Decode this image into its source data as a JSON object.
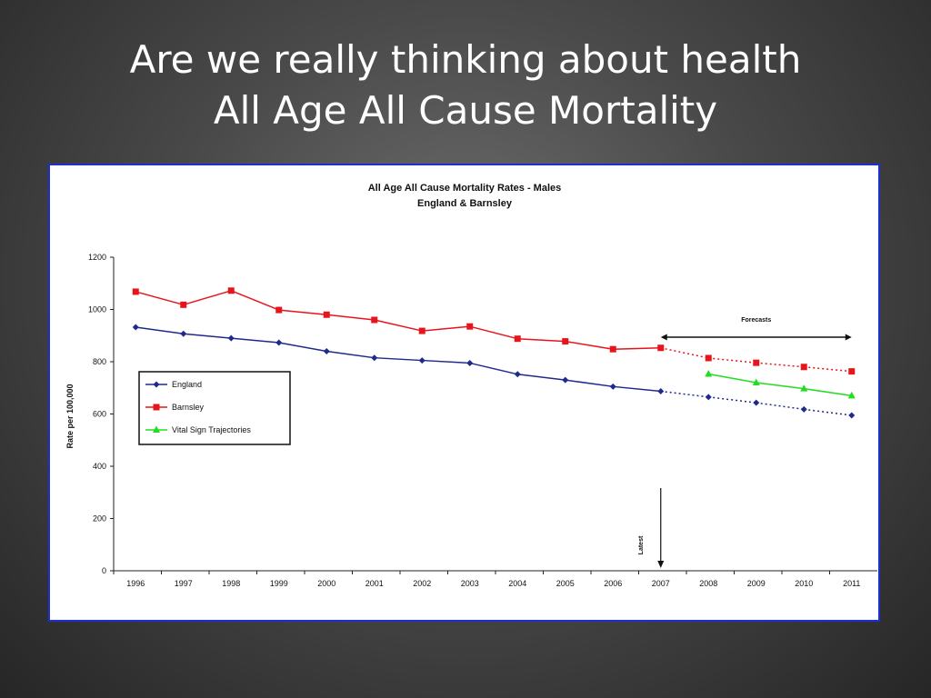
{
  "slide": {
    "title_line1": "Are we really thinking about health",
    "title_line2": "All Age All Cause Mortality"
  },
  "chart_data": {
    "type": "line",
    "title": "All Age All Cause Mortality Rates - Males",
    "subtitle": "England & Barnsley",
    "xlabel": "",
    "ylabel": "Rate per 100,000",
    "categories": [
      "1996",
      "1997",
      "1998",
      "1999",
      "2000",
      "2001",
      "2002",
      "2003",
      "2004",
      "2005",
      "2006",
      "2007",
      "2008",
      "2009",
      "2010",
      "2011"
    ],
    "ylim": [
      0,
      1200
    ],
    "yticks": [
      0,
      200,
      400,
      600,
      800,
      1000,
      1200
    ],
    "grid": false,
    "legend_position": "left",
    "series": [
      {
        "name": "England",
        "color": "#1f2a8c",
        "marker": "diamond",
        "values": [
          932,
          907,
          890,
          873,
          840,
          815,
          805,
          795,
          752,
          730,
          705,
          687,
          665,
          643,
          618,
          595
        ],
        "forecast_from_index": 11
      },
      {
        "name": "Barnsley",
        "color": "#e8141b",
        "marker": "square",
        "values": [
          1068,
          1018,
          1072,
          998,
          980,
          960,
          918,
          935,
          888,
          878,
          848,
          853,
          814,
          796,
          780,
          763
        ],
        "forecast_from_index": 11
      },
      {
        "name": "Vital Sign Trajectories",
        "color": "#22dd22",
        "marker": "triangle",
        "values": [
          null,
          null,
          null,
          null,
          null,
          null,
          null,
          null,
          null,
          null,
          null,
          null,
          753,
          720,
          697,
          670
        ]
      }
    ],
    "annotations": {
      "forecasts_label": "Forecasts",
      "forecasts_from": "2007",
      "forecasts_to": "2011",
      "latest_label": "Latest",
      "latest_at": "2007"
    }
  }
}
